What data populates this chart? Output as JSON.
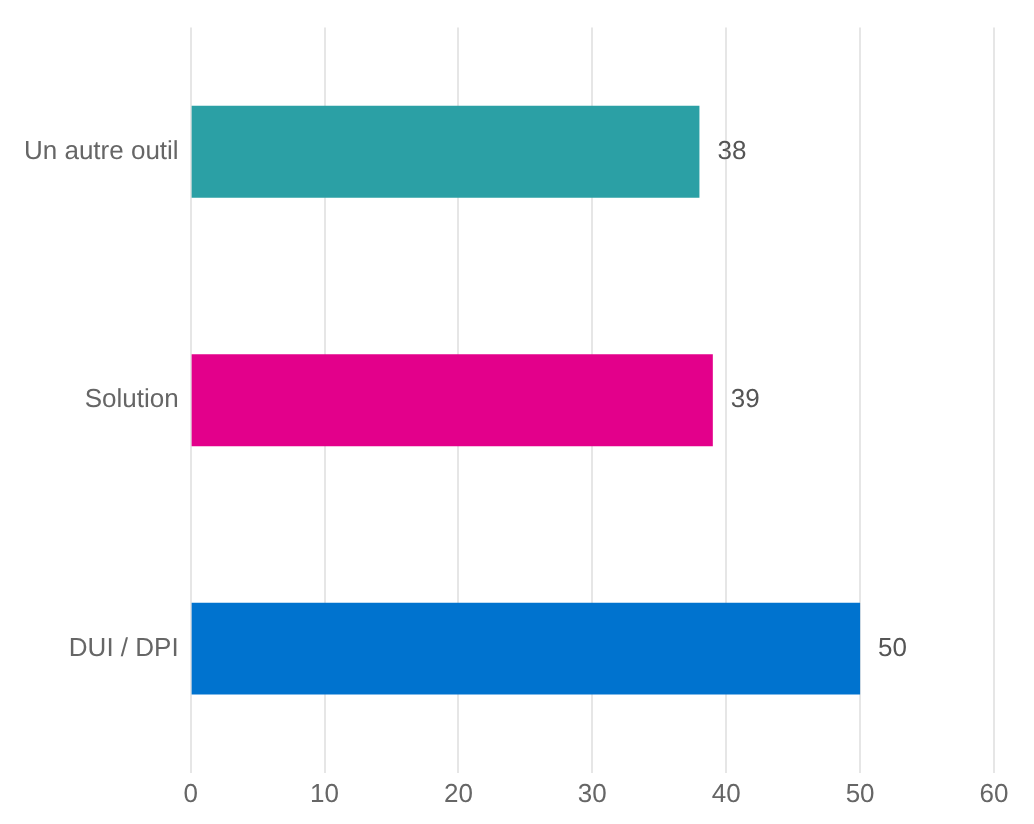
{
  "chart_data": {
    "type": "bar",
    "orientation": "horizontal",
    "categories": [
      "Un autre outil",
      "Solution",
      "DUI / DPI"
    ],
    "values": [
      38,
      39,
      50
    ],
    "colors": [
      "#2ba0a5",
      "#e3008b",
      "#0073cf"
    ],
    "xlim": [
      0,
      60
    ],
    "xticks": [
      0,
      10,
      20,
      30,
      40,
      50,
      60
    ],
    "grid": "x",
    "data_labels": true,
    "legend": false
  }
}
